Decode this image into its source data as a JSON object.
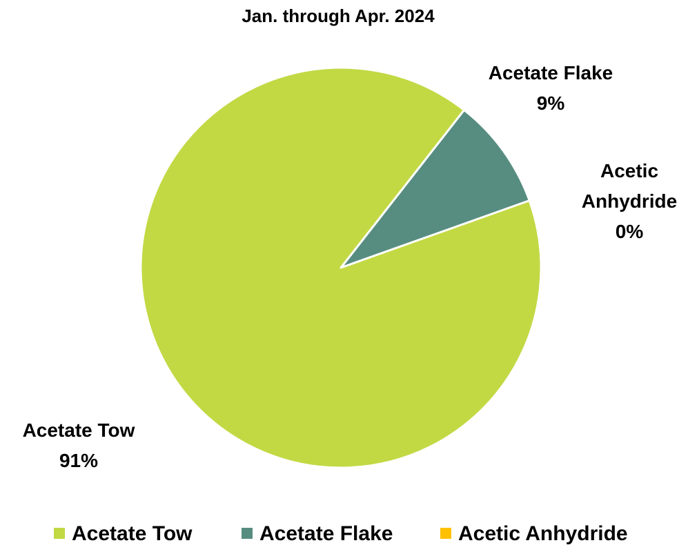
{
  "chart_data": {
    "type": "pie",
    "title": "Jan. through Apr.  2024",
    "slices": [
      {
        "name": "Acetate Tow",
        "value": 91,
        "label": "91%",
        "color": "#c2d944"
      },
      {
        "name": "Acetate Flake",
        "value": 9,
        "label": "9%",
        "color": "#578d81"
      },
      {
        "name": "Acetic Anhydride",
        "value": 0,
        "label": "0%",
        "color": "#ffc000"
      }
    ],
    "legend_position": "bottom"
  }
}
